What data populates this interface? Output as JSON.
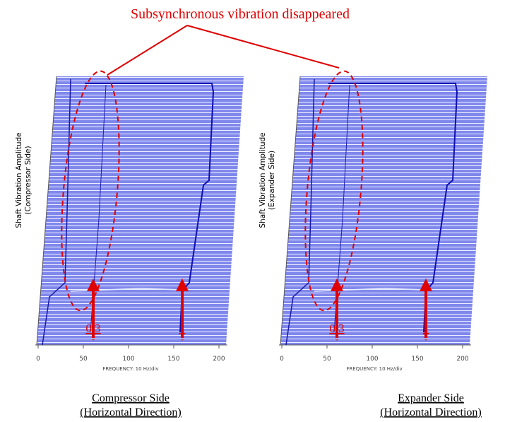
{
  "annotation": "Subsynchronous vibration disappeared",
  "panels": [
    {
      "y_label": [
        "Shaft Vibration Amplitude",
        "(Compressor Side)"
      ],
      "x_ticks": [
        "0",
        "50",
        "100",
        "150",
        "200"
      ],
      "x_label": "FREQUENCY: 10 Hz/div",
      "markers": [
        "0.3",
        "1"
      ],
      "caption": [
        "Compressor Side",
        "(Horizontal Direction)"
      ]
    },
    {
      "y_label": [
        "Shaft Vibration Amplitude",
        "(Expander Side)"
      ],
      "x_ticks": [
        "0",
        "50",
        "100",
        "150",
        "200"
      ],
      "x_label": "FREQUENCY: 10 Hz/div",
      "markers": [
        "0.3",
        "1"
      ],
      "caption": [
        "Expander Side",
        "(Horizontal Direction)"
      ]
    }
  ]
}
